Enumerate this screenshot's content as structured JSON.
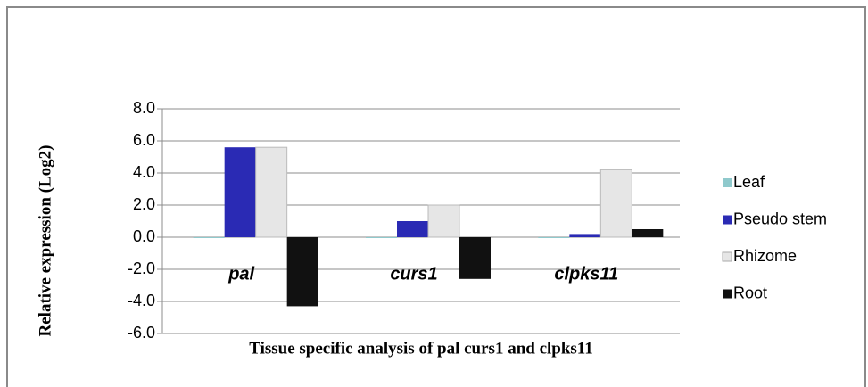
{
  "chart_data": {
    "type": "bar",
    "x_label": "Tissue specific analysis of pal curs1 and clpks11",
    "y_label": "Relative expression  (Log2)",
    "categories": [
      "pal",
      "curs1",
      "clpks11"
    ],
    "series": [
      {
        "name": "Leaf",
        "color": "#8fc9cc",
        "values": [
          0,
          0,
          0
        ]
      },
      {
        "name": "Pseudo stem",
        "color": "#2a2ab4",
        "values": [
          5.6,
          1.0,
          0.2
        ]
      },
      {
        "name": "Rhizome",
        "color": "#e6e6e6",
        "values": [
          5.6,
          2.0,
          4.2
        ]
      },
      {
        "name": "Root",
        "color": "#111111",
        "values": [
          -4.3,
          -2.6,
          0.5
        ]
      }
    ],
    "ylim": [
      -6,
      8
    ],
    "yticks": [
      {
        "value": -6,
        "label": "-6.0"
      },
      {
        "value": -4,
        "label": "-4.0"
      },
      {
        "value": -2,
        "label": "-2.0"
      },
      {
        "value": 0,
        "label": "0.0"
      },
      {
        "value": 2,
        "label": "2.0"
      },
      {
        "value": 4,
        "label": "4.0"
      },
      {
        "value": 6,
        "label": "6.0"
      },
      {
        "value": 8,
        "label": "8.0"
      }
    ],
    "grid": true,
    "legend": "right"
  }
}
